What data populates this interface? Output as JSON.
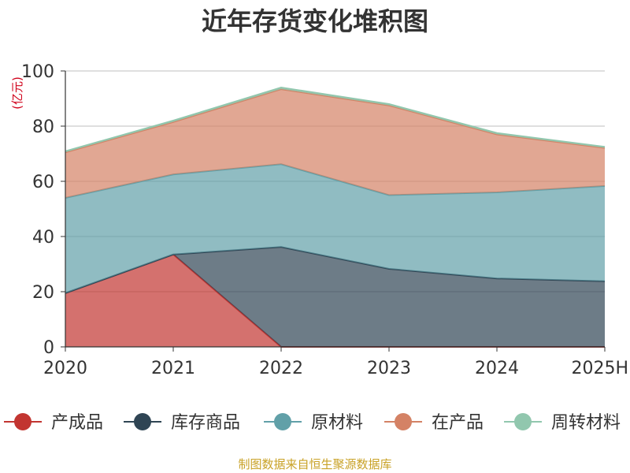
{
  "chart_data": {
    "type": "area",
    "stacked": true,
    "title": "近年存货变化堆积图",
    "unit_label": "(亿元)",
    "categories": [
      "2020",
      "2021",
      "2022",
      "2023",
      "2024",
      "2025H"
    ],
    "ylim": [
      0,
      100
    ],
    "yticks": [
      0,
      20,
      40,
      60,
      80,
      100
    ],
    "grid": true,
    "legend_position": "bottom",
    "series": [
      {
        "name": "产成品",
        "color": "#c23531",
        "values": [
          19.5,
          33.5,
          0,
          0,
          0,
          0
        ]
      },
      {
        "name": "库存商品",
        "color": "#2f4554",
        "values": [
          0,
          0,
          36.2,
          28.3,
          24.8,
          23.8
        ]
      },
      {
        "name": "原材料",
        "color": "#61a0a8",
        "values": [
          34.5,
          29,
          30,
          26.7,
          31.2,
          34.5
        ]
      },
      {
        "name": "在产品",
        "color": "#d48265",
        "values": [
          16.5,
          19,
          27.2,
          32.5,
          21,
          13.8
        ]
      },
      {
        "name": "周转材料",
        "color": "#91c7ae",
        "values": [
          0.4,
          0.5,
          0.6,
          0.5,
          0.5,
          0.4
        ]
      }
    ],
    "source": "制图数据来自恒生聚源数据库"
  }
}
